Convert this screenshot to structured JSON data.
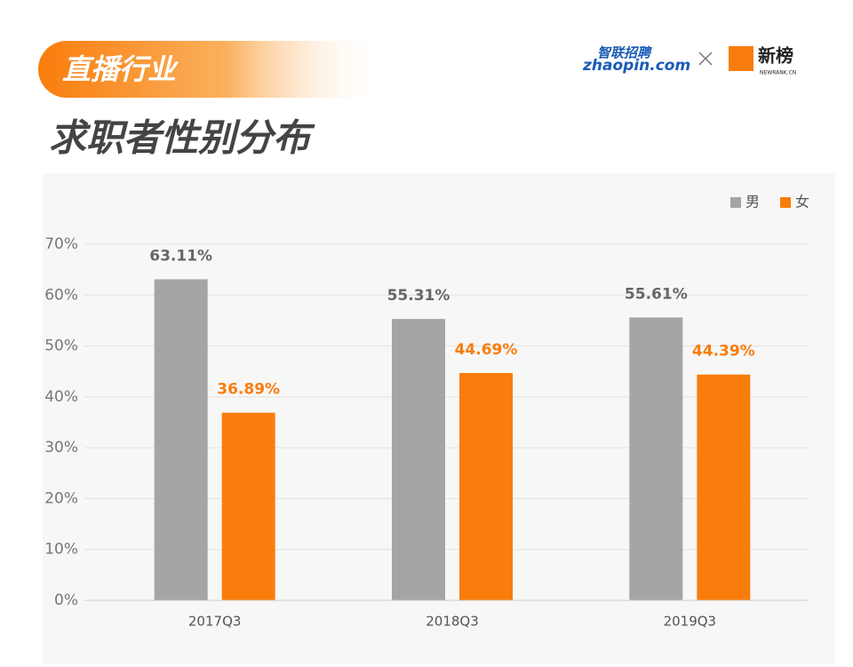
{
  "header": {
    "tag": "直播行业",
    "title": "求职者性别分布"
  },
  "logos": {
    "zhaopin_cn": "智联招聘",
    "zhaopin_en": "zhaopin.com",
    "newrank_cn": "新榜",
    "newrank_en": "NEWRANK.CN"
  },
  "chart_data": {
    "type": "bar",
    "categories": [
      "2017Q3",
      "2018Q3",
      "2019Q3"
    ],
    "series": [
      {
        "name": "男",
        "color": "#a6a5a6",
        "values": [
          63.11,
          55.31,
          55.61
        ],
        "value_labels": [
          "63.11%",
          "55.31%",
          "55.61%"
        ]
      },
      {
        "name": "女",
        "color": "#f97d0c",
        "values": [
          36.89,
          44.69,
          44.39
        ],
        "value_labels": [
          "36.89%",
          "44.69%",
          "44.39%"
        ]
      }
    ],
    "ylim": [
      0,
      70
    ],
    "yticks": [
      {
        "value": 0,
        "label": "0%"
      },
      {
        "value": 10,
        "label": "10%"
      },
      {
        "value": 20,
        "label": "20%"
      },
      {
        "value": 30,
        "label": "30%"
      },
      {
        "value": 40,
        "label": "40%"
      },
      {
        "value": 50,
        "label": "50%"
      },
      {
        "value": 60,
        "label": "60%"
      },
      {
        "value": 70,
        "label": "70%"
      }
    ],
    "grid": true,
    "legend": "top-right"
  }
}
